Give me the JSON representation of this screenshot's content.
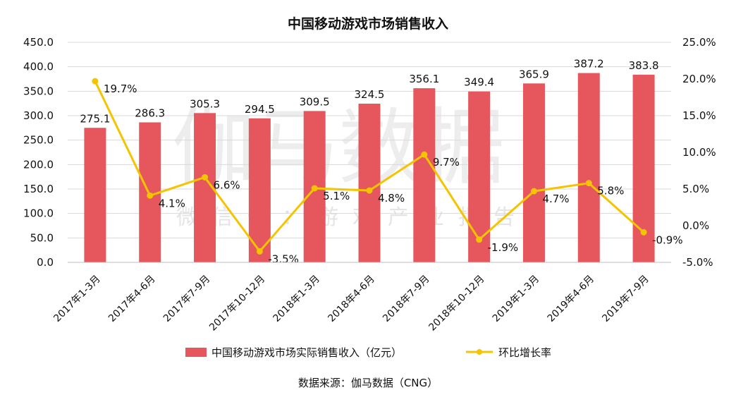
{
  "watermark": {
    "main": "伽马数据",
    "sub": "微信号：游戏产业报告"
  },
  "source": "数据来源：伽马数据（CNG）",
  "chart_data": {
    "type": "bar",
    "title": "中国移动游戏市场销售收入",
    "categories": [
      "2017年1-3月",
      "2017年4-6月",
      "2017年7-9月",
      "2017年10-12月",
      "2018年1-3月",
      "2018年4-6月",
      "2018年7-9月",
      "2018年10-12月",
      "2019年1-3月",
      "2019年4-6月",
      "2019年7-9月"
    ],
    "series": [
      {
        "name": "中国移动游戏市场实际销售收入（亿元）",
        "type": "bar",
        "axis": "left",
        "color": "#e5575d",
        "values": [
          275.1,
          286.3,
          305.3,
          294.5,
          309.5,
          324.5,
          356.1,
          349.4,
          365.9,
          387.2,
          383.8
        ],
        "labels": [
          "275.1",
          "286.3",
          "305.3",
          "294.5",
          "309.5",
          "324.5",
          "356.1",
          "349.4",
          "365.9",
          "387.2",
          "383.8"
        ]
      },
      {
        "name": "环比增长率",
        "type": "line",
        "axis": "right",
        "color": "#f5c400",
        "values": [
          19.7,
          4.1,
          6.6,
          -3.5,
          5.1,
          4.8,
          9.7,
          -1.9,
          4.7,
          5.8,
          -0.9
        ],
        "labels": [
          "19.7%",
          "4.1%",
          "6.6%",
          "-3.5%",
          "5.1%",
          "4.8%",
          "9.7%",
          "-1.9%",
          "4.7%",
          "5.8%",
          "-0.9%"
        ]
      }
    ],
    "y_left": {
      "min": 0,
      "max": 450,
      "ticks": [
        "0.0",
        "50.0",
        "100.0",
        "150.0",
        "200.0",
        "250.0",
        "300.0",
        "350.0",
        "400.0",
        "450.0"
      ]
    },
    "y_right": {
      "min": -5,
      "max": 25,
      "ticks": [
        "-5.0%",
        "0.0%",
        "5.0%",
        "10.0%",
        "15.0%",
        "20.0%",
        "25.0%"
      ]
    },
    "grid": true,
    "legend": "bottom"
  }
}
